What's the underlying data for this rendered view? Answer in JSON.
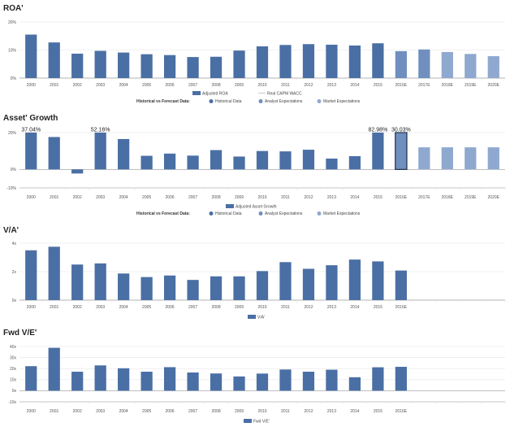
{
  "colors": {
    "historical": "#4a6fa5",
    "analyst": "#6f8fbf",
    "market": "#8fa8cf",
    "wacc": "#c8c8c8",
    "outline": "#1f2f4a"
  },
  "chart_data": [
    {
      "type": "bar",
      "title": "ROA'",
      "categories": [
        "2000",
        "2001",
        "2002",
        "2003",
        "2004",
        "2005",
        "2006",
        "2007",
        "2008",
        "2009",
        "2010",
        "2011",
        "2012",
        "2013",
        "2014",
        "2015",
        "2016E",
        "2017E",
        "2018E",
        "2019E",
        "2020E"
      ],
      "values": [
        15.5,
        12.7,
        8.7,
        9.7,
        9.1,
        8.5,
        8.2,
        7.5,
        7.6,
        9.8,
        11.3,
        11.8,
        12.1,
        11.9,
        11.6,
        12.4,
        9.6,
        10.2,
        9.3,
        8.6,
        7.8
      ],
      "kinds": [
        "h",
        "h",
        "h",
        "h",
        "h",
        "h",
        "h",
        "h",
        "h",
        "h",
        "h",
        "h",
        "h",
        "h",
        "h",
        "h",
        "a",
        "a",
        "m",
        "m",
        "m"
      ],
      "ylim": [
        0,
        20
      ],
      "yticks": [
        0,
        10,
        20
      ],
      "ytick_labels": [
        "0%",
        "10%",
        "20%"
      ],
      "grid": true,
      "legend_series": [
        "Adjusted ROA",
        "Real CAPM WACC"
      ],
      "legend_caption": "Historical vs Forecast Data:",
      "legend_items": [
        "Historical Data",
        "Analyst Expectations",
        "Market Expectations"
      ]
    },
    {
      "type": "bar",
      "title": "Asset' Growth",
      "categories": [
        "2000",
        "2001",
        "2002",
        "2003",
        "2004",
        "2005",
        "2006",
        "2007",
        "2008",
        "2009",
        "2010",
        "2011",
        "2012",
        "2013",
        "2014",
        "2015",
        "2016E",
        "2017E",
        "2018E",
        "2019E",
        "2020E"
      ],
      "values": [
        37.04,
        17.6,
        -2.2,
        52.16,
        16.5,
        7.4,
        8.6,
        7.5,
        10.5,
        7.0,
        10.0,
        9.8,
        10.7,
        5.9,
        7.2,
        82.98,
        30.03,
        12.0,
        12.0,
        12.0,
        12.0
      ],
      "kinds": [
        "h",
        "h",
        "h",
        "h",
        "h",
        "h",
        "h",
        "h",
        "h",
        "h",
        "h",
        "h",
        "h",
        "h",
        "h",
        "h",
        "a",
        "m",
        "m",
        "m",
        "m"
      ],
      "outlined": [
        16
      ],
      "data_labels": [
        "37.04%",
        "",
        "",
        "52.16%",
        "",
        "",
        "",
        "",
        "",
        "",
        "",
        "",
        "",
        "",
        "",
        "82.98%",
        "30.03%",
        "",
        "",
        "",
        ""
      ],
      "ylim": [
        -10,
        20
      ],
      "yticks": [
        -10,
        0,
        20
      ],
      "ytick_labels": [
        "-10%",
        "0%",
        "20%"
      ],
      "grid": true,
      "legend_series": [
        "Adjusted Asset Growth"
      ],
      "legend_caption": "Historical vs Forecast Data:",
      "legend_items": [
        "Historical Data",
        "Analyst Expectations",
        "Market Expectations"
      ]
    },
    {
      "type": "bar",
      "title": "V/A'",
      "categories": [
        "2000",
        "2001",
        "2002",
        "2003",
        "2004",
        "2005",
        "2006",
        "2007",
        "2008",
        "2009",
        "2010",
        "2011",
        "2012",
        "2013",
        "2014",
        "2015",
        "2016E",
        "",
        "",
        "",
        ""
      ],
      "values": [
        3.5,
        3.75,
        2.5,
        2.58,
        1.87,
        1.62,
        1.73,
        1.42,
        1.67,
        1.67,
        2.04,
        2.67,
        2.2,
        2.45,
        2.85,
        2.72,
        2.08,
        null,
        null,
        null,
        null
      ],
      "kinds": [
        "h",
        "h",
        "h",
        "h",
        "h",
        "h",
        "h",
        "h",
        "h",
        "h",
        "h",
        "h",
        "h",
        "h",
        "h",
        "h",
        "h",
        "",
        "",
        "",
        ""
      ],
      "ylim": [
        0,
        4
      ],
      "yticks": [
        0,
        2,
        4
      ],
      "ytick_labels": [
        "0x",
        "2x",
        "4x"
      ],
      "grid": true,
      "legend_series": [
        "V/A'"
      ]
    },
    {
      "type": "bar",
      "title": "Fwd V/E'",
      "categories": [
        "2000",
        "2001",
        "2002",
        "2003",
        "2004",
        "2005",
        "2006",
        "2007",
        "2008",
        "2009",
        "2010",
        "2011",
        "2012",
        "2013",
        "2014",
        "2015",
        "2016E",
        "",
        "",
        "",
        ""
      ],
      "values": [
        22.2,
        38.8,
        17.2,
        22.9,
        20.3,
        17.2,
        21.3,
        16.5,
        15.6,
        12.9,
        15.5,
        19.2,
        17.2,
        19.0,
        12.2,
        21.2,
        21.6,
        null,
        null,
        null,
        null
      ],
      "kinds": [
        "h",
        "h",
        "h",
        "h",
        "h",
        "h",
        "h",
        "h",
        "h",
        "h",
        "h",
        "h",
        "h",
        "h",
        "h",
        "h",
        "h",
        "",
        "",
        "",
        ""
      ],
      "ylim": [
        -10,
        40
      ],
      "yticks": [
        -10,
        0,
        10,
        20,
        30,
        40
      ],
      "ytick_labels": [
        "-10x",
        "0x",
        "10x",
        "20x",
        "30x",
        "40x"
      ],
      "grid": true,
      "legend_series": [
        "Fwd V/E'"
      ]
    }
  ]
}
